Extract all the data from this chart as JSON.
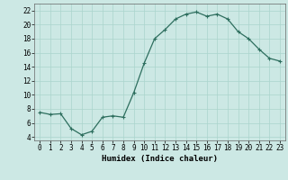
{
  "x": [
    0,
    1,
    2,
    3,
    4,
    5,
    6,
    7,
    8,
    9,
    10,
    11,
    12,
    13,
    14,
    15,
    16,
    17,
    18,
    19,
    20,
    21,
    22,
    23
  ],
  "y": [
    7.5,
    7.2,
    7.3,
    5.2,
    4.3,
    4.8,
    6.8,
    7.0,
    6.8,
    10.3,
    14.5,
    18.0,
    19.3,
    20.8,
    21.5,
    21.8,
    21.2,
    21.5,
    20.8,
    19.0,
    18.0,
    16.5,
    15.2,
    14.8
  ],
  "line_color": "#2d6e5e",
  "marker": "+",
  "marker_size": 3,
  "marker_linewidth": 0.8,
  "bg_color": "#cce8e4",
  "grid_color": "#aad4cc",
  "xlabel": "Humidex (Indice chaleur)",
  "xlim": [
    -0.5,
    23.5
  ],
  "ylim": [
    3.5,
    23.0
  ],
  "yticks": [
    4,
    6,
    8,
    10,
    12,
    14,
    16,
    18,
    20,
    22
  ],
  "xticks": [
    0,
    1,
    2,
    3,
    4,
    5,
    6,
    7,
    8,
    9,
    10,
    11,
    12,
    13,
    14,
    15,
    16,
    17,
    18,
    19,
    20,
    21,
    22,
    23
  ],
  "tick_fontsize": 5.5,
  "xlabel_fontsize": 6.5,
  "linewidth": 0.9
}
